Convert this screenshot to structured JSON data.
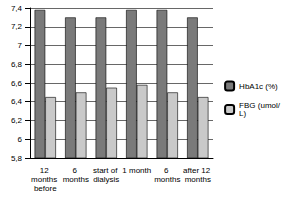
{
  "chart_data": {
    "type": "bar",
    "categories": [
      "12 months before",
      "6 months",
      "start of dialysis",
      "1 month",
      "6 months",
      "after 12 months"
    ],
    "series": [
      {
        "name": "HbA1c (%)",
        "color": "#7a7a7a",
        "values": [
          7.38,
          7.3,
          7.3,
          7.38,
          7.38,
          7.3
        ]
      },
      {
        "name": "FBG (umol/L)",
        "color": "#c9c9c9",
        "values": [
          6.45,
          6.5,
          6.55,
          6.58,
          6.5,
          6.45
        ]
      }
    ],
    "ylim": [
      5.8,
      7.4
    ],
    "yticks": [
      {
        "value": 5.8,
        "label": "5,8"
      },
      6,
      {
        "value": 6.2,
        "label": "6,2"
      },
      {
        "value": 6.4,
        "label": "6,4"
      },
      {
        "value": 6.6,
        "label": "6,6"
      },
      {
        "value": 6.8,
        "label": "6,8"
      },
      7,
      {
        "value": 7.2,
        "label": "7,2"
      },
      {
        "value": 7.4,
        "label": "7,4"
      }
    ],
    "grid": true,
    "legend": "right"
  }
}
